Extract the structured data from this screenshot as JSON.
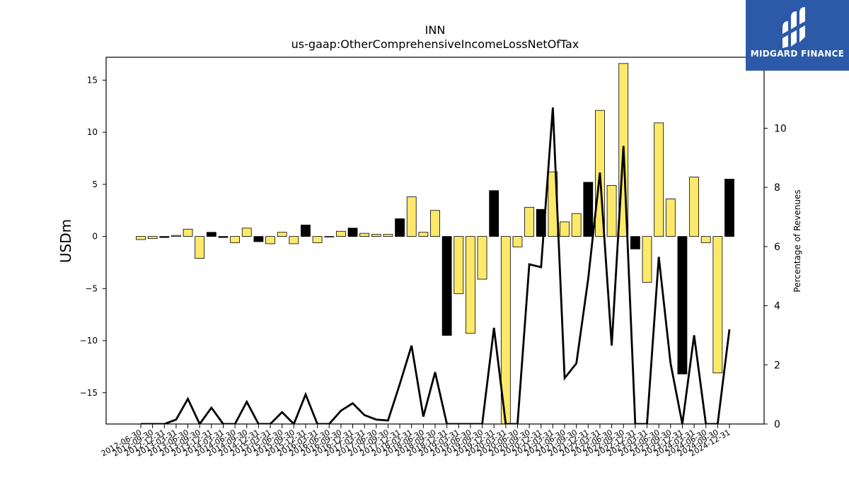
{
  "title": "INN",
  "subtitle": "us-gaap:OtherComprehensiveIncomeLossNetOfTax",
  "logo": {
    "text": "MIDGARD FINANCE",
    "bg_color": "#2c5aa8"
  },
  "colors": {
    "positive": "#fce96a",
    "negative": "#000000",
    "bar_stroke": "#000000",
    "line": "#000000"
  },
  "chart_data": {
    "type": "bar",
    "ylabel": "USDm",
    "y2label": "Percentage of Revenues",
    "ylim": [
      -18,
      17.2
    ],
    "y2lim": [
      0,
      12.4
    ],
    "yticks": [
      -15,
      -10,
      -5,
      0,
      5,
      10,
      15
    ],
    "y2ticks": [
      0,
      2,
      4,
      6,
      8,
      10
    ],
    "categories": [
      "2012-06-30",
      "2012-09-30",
      "2012-12-31",
      "2013-03-31",
      "2013-06-30",
      "2013-09-30",
      "2013-12-31",
      "2014-03-31",
      "2014-06-30",
      "2014-09-30",
      "2014-12-31",
      "2015-03-31",
      "2015-06-30",
      "2015-09-30",
      "2015-12-31",
      "2016-03-31",
      "2016-06-30",
      "2016-09-30",
      "2016-12-31",
      "2017-03-31",
      "2017-06-30",
      "2017-09-30",
      "2017-12-31",
      "2018-03-31",
      "2018-06-30",
      "2018-09-30",
      "2018-12-31",
      "2019-03-31",
      "2019-06-30",
      "2019-09-30",
      "2019-12-31",
      "2020-03-31",
      "2020-06-30",
      "2020-09-30",
      "2020-12-31",
      "2021-03-31",
      "2021-06-30",
      "2021-09-30",
      "2021-12-31",
      "2022-03-31",
      "2022-06-30",
      "2022-09-30",
      "2022-12-31",
      "2023-03-31",
      "2023-06-30",
      "2023-09-30",
      "2023-12-31",
      "2024-03-31",
      "2024-06-30",
      "2024-09-30",
      "2024-12-31"
    ],
    "series": [
      {
        "type": "bar",
        "values": [
          -0.3,
          -0.2,
          -0.1,
          0.1,
          0.7,
          -2.1,
          0.4,
          -0.1,
          -0.6,
          0.8,
          -0.5,
          -0.7,
          0.4,
          -0.7,
          1.1,
          -0.6,
          0.0,
          0.5,
          0.8,
          0.3,
          0.2,
          0.2,
          1.7,
          3.8,
          0.4,
          2.5,
          -9.5,
          -5.5,
          -9.3,
          -4.1,
          4.4,
          -18.0,
          -1.0,
          2.8,
          2.6,
          6.2,
          1.4,
          2.2,
          5.2,
          12.1,
          4.9,
          16.6,
          -1.2,
          -4.4,
          10.9,
          3.6,
          -13.2,
          5.7,
          -0.6,
          -13.1,
          5.5
        ],
        "fill": [
          "pos",
          "pos",
          "neg",
          "pos",
          "pos",
          "pos",
          "neg",
          "neg",
          "pos",
          "pos",
          "neg",
          "pos",
          "pos",
          "pos",
          "neg",
          "pos",
          "neg",
          "pos",
          "neg",
          "pos",
          "pos",
          "pos",
          "neg",
          "pos",
          "pos",
          "pos",
          "neg",
          "pos",
          "pos",
          "pos",
          "neg",
          "pos",
          "pos",
          "pos",
          "neg",
          "pos",
          "pos",
          "pos",
          "neg",
          "pos",
          "pos",
          "pos",
          "neg",
          "pos",
          "pos",
          "pos",
          "neg",
          "pos",
          "pos",
          "pos",
          "neg"
        ]
      },
      {
        "type": "line",
        "axis": "right",
        "values": [
          0,
          0,
          0,
          0.15,
          0.85,
          0,
          0.55,
          0,
          0,
          0.75,
          0,
          0,
          0.4,
          0,
          1.0,
          0,
          0,
          0.45,
          0.7,
          0.3,
          0.15,
          0.12,
          1.35,
          2.65,
          0.25,
          1.75,
          0,
          0,
          0,
          0,
          3.25,
          0,
          0,
          5.4,
          5.3,
          10.7,
          1.55,
          2.05,
          4.9,
          8.5,
          2.65,
          9.4,
          0,
          0,
          5.65,
          2.05,
          0,
          3.0,
          0,
          0,
          3.2
        ]
      }
    ]
  }
}
